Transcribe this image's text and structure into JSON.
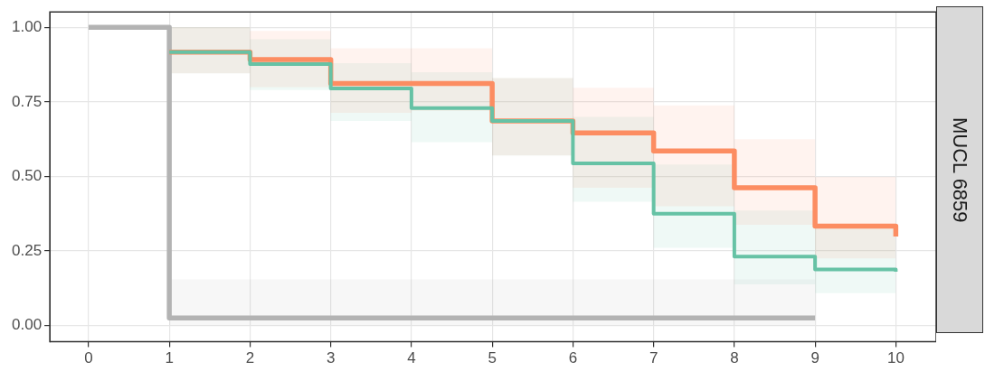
{
  "chart_data": {
    "type": "step",
    "annotations": [
      "MUCL 6859"
    ],
    "xlim": [
      -0.48,
      10.5
    ],
    "xticks": [
      0,
      1,
      2,
      3,
      4,
      5,
      6,
      7,
      8,
      9,
      10
    ],
    "ylim": [
      -0.055,
      1.052
    ],
    "yticks": [
      {
        "value": 0,
        "label": "0.00"
      },
      {
        "value": 0.25,
        "label": "0.25"
      },
      {
        "value": 0.5,
        "label": "0.50"
      },
      {
        "value": 0.75,
        "label": "0.75"
      },
      {
        "value": 1,
        "label": "1.00"
      }
    ],
    "grid": true,
    "legend": false,
    "marker": "none",
    "line_style": "solid",
    "series": [
      {
        "color": "#b3b3b3",
        "x": [
          0,
          1,
          9
        ],
        "values": [
          1,
          0.025,
          0.025
        ],
        "lower": [
          1,
          0,
          0
        ],
        "upper": [
          1,
          0.154,
          0.154
        ]
      },
      {
        "color": "#fc8d62",
        "x": [
          1,
          2,
          3,
          4,
          5,
          6,
          7,
          8,
          9,
          10
        ],
        "values": [
          0.917,
          0.892,
          0.812,
          0.812,
          0.686,
          0.646,
          0.585,
          0.462,
          0.333,
          0.298
        ],
        "lower": [
          0.846,
          0.8,
          0.713,
          0.72,
          0.57,
          0.462,
          0.4,
          0.338,
          0.225,
          0.225
        ],
        "upper": [
          1,
          0.988,
          0.93,
          0.93,
          0.83,
          0.797,
          0.738,
          0.625,
          0.498,
          0.498
        ]
      },
      {
        "color": "#66c2a5",
        "x": [
          1,
          2,
          3,
          4,
          5,
          6,
          7,
          8,
          9,
          10
        ],
        "values": [
          0.917,
          0.877,
          0.795,
          0.729,
          0.686,
          0.544,
          0.375,
          0.231,
          0.188,
          0.18
        ],
        "lower": [
          0.846,
          0.79,
          0.686,
          0.615,
          0.57,
          0.415,
          0.26,
          0.138,
          0.108,
          0.108
        ],
        "upper": [
          1,
          0.96,
          0.88,
          0.85,
          0.83,
          0.7,
          0.54,
          0.385,
          0.33,
          0.33
        ]
      }
    ]
  }
}
